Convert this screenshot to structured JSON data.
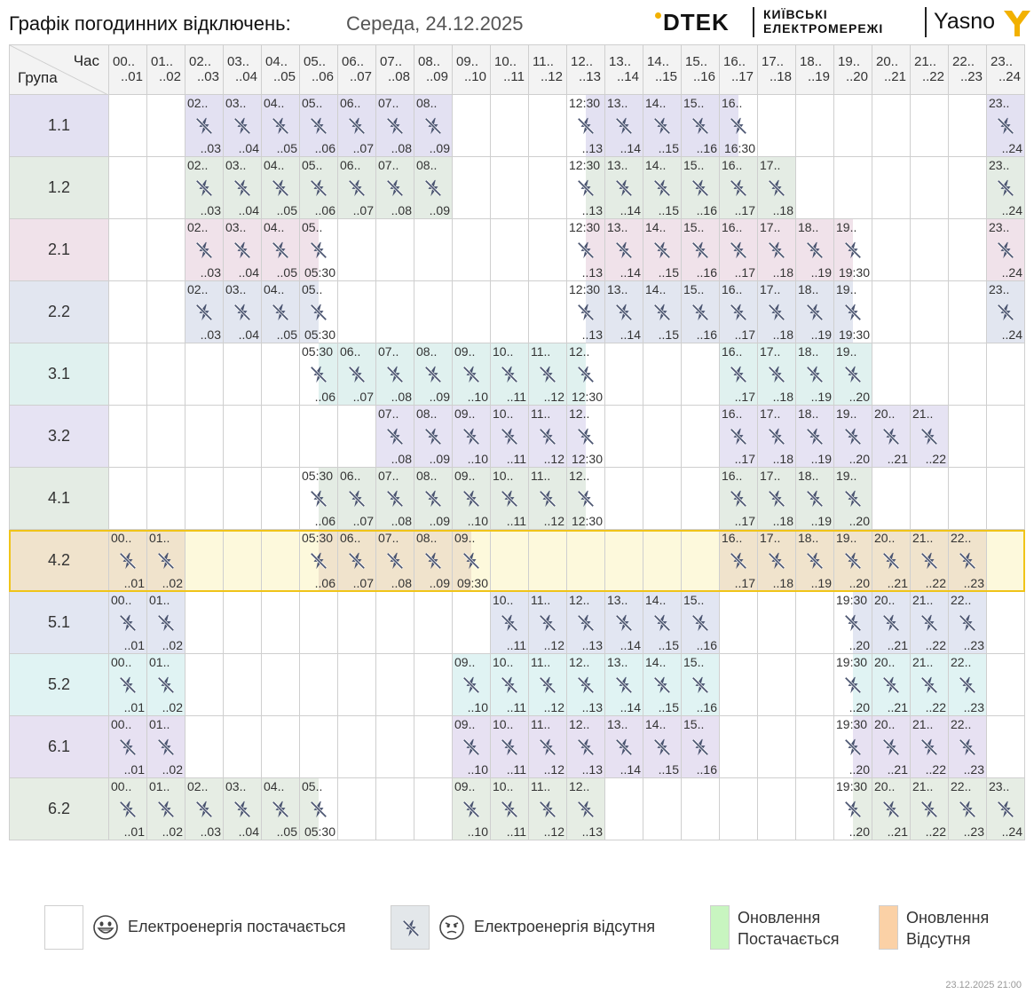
{
  "header": {
    "title": "Графік погодинних відключень:",
    "date": "Середа, 24.12.2025",
    "logo_dtek": "DTEK",
    "logo_kyiv_line1": "КИЇВСЬКІ",
    "logo_kyiv_line2": "ЕЛЕКТРОМЕРЕЖІ",
    "logo_yasno": "Yasno"
  },
  "table": {
    "corner_hour": "Час",
    "corner_group": "Група",
    "hours": [
      {
        "s": "00..",
        "e": "..01"
      },
      {
        "s": "01..",
        "e": "..02"
      },
      {
        "s": "02..",
        "e": "..03"
      },
      {
        "s": "03..",
        "e": "..04"
      },
      {
        "s": "04..",
        "e": "..05"
      },
      {
        "s": "05..",
        "e": "..06"
      },
      {
        "s": "06..",
        "e": "..07"
      },
      {
        "s": "07..",
        "e": "..08"
      },
      {
        "s": "08..",
        "e": "..09"
      },
      {
        "s": "09..",
        "e": "..10"
      },
      {
        "s": "10..",
        "e": "..11"
      },
      {
        "s": "11..",
        "e": "..12"
      },
      {
        "s": "12..",
        "e": "..13"
      },
      {
        "s": "13..",
        "e": "..14"
      },
      {
        "s": "14..",
        "e": "..15"
      },
      {
        "s": "15..",
        "e": "..16"
      },
      {
        "s": "16..",
        "e": "..17"
      },
      {
        "s": "17..",
        "e": "..18"
      },
      {
        "s": "18..",
        "e": "..19"
      },
      {
        "s": "19..",
        "e": "..20"
      },
      {
        "s": "20..",
        "e": "..21"
      },
      {
        "s": "21..",
        "e": "..22"
      },
      {
        "s": "22..",
        "e": "..23"
      },
      {
        "s": "23..",
        "e": "..24"
      }
    ],
    "groups": [
      {
        "label": "1.1",
        "color": "#e3e1f2",
        "cells": "00000000000000000000000000000000000000000000000000000000000000000000000000000000000000000000000000000000000000000000000000000000000000000000"
      },
      {
        "label": "1.2",
        "color": "#e4ece4"
      },
      {
        "label": "2.1",
        "color": "#f0e2ea"
      },
      {
        "label": "2.2",
        "color": "#e2e6f0"
      },
      {
        "label": "3.1",
        "color": "#e0f1ef"
      },
      {
        "label": "3.2",
        "color": "#e6e3f3"
      },
      {
        "label": "4.1",
        "color": "#e4ece4"
      },
      {
        "label": "4.2",
        "color": "#f0e3cc",
        "selected": true
      },
      {
        "label": "5.1",
        "color": "#e2e6f2"
      },
      {
        "label": "5.2",
        "color": "#e0f3f3"
      },
      {
        "label": "6.1",
        "color": "#e7e1f2"
      },
      {
        "label": "6.2",
        "color": "#e6ede4"
      }
    ],
    "outages": [
      [
        [
          2,
          "full"
        ],
        [
          3,
          "full"
        ],
        [
          4,
          "full"
        ],
        [
          5,
          "full"
        ],
        [
          6,
          "full"
        ],
        [
          7,
          "full"
        ],
        [
          8,
          "full"
        ],
        [
          12,
          "second"
        ],
        [
          13,
          "full"
        ],
        [
          14,
          "full"
        ],
        [
          15,
          "full"
        ],
        [
          16,
          "first"
        ],
        [
          23,
          "full"
        ]
      ],
      [
        [
          2,
          "full"
        ],
        [
          3,
          "full"
        ],
        [
          4,
          "full"
        ],
        [
          5,
          "full"
        ],
        [
          6,
          "full"
        ],
        [
          7,
          "full"
        ],
        [
          8,
          "full"
        ],
        [
          12,
          "second"
        ],
        [
          13,
          "full"
        ],
        [
          14,
          "full"
        ],
        [
          15,
          "full"
        ],
        [
          16,
          "full"
        ],
        [
          17,
          "full"
        ],
        [
          23,
          "full"
        ]
      ],
      [
        [
          2,
          "full"
        ],
        [
          3,
          "full"
        ],
        [
          4,
          "full"
        ],
        [
          5,
          "first"
        ],
        [
          12,
          "second"
        ],
        [
          13,
          "full"
        ],
        [
          14,
          "full"
        ],
        [
          15,
          "full"
        ],
        [
          16,
          "full"
        ],
        [
          17,
          "full"
        ],
        [
          18,
          "full"
        ],
        [
          19,
          "first"
        ],
        [
          23,
          "full"
        ]
      ],
      [
        [
          2,
          "full"
        ],
        [
          3,
          "full"
        ],
        [
          4,
          "full"
        ],
        [
          5,
          "first"
        ],
        [
          12,
          "second"
        ],
        [
          13,
          "full"
        ],
        [
          14,
          "full"
        ],
        [
          15,
          "full"
        ],
        [
          16,
          "full"
        ],
        [
          17,
          "full"
        ],
        [
          18,
          "full"
        ],
        [
          19,
          "first"
        ],
        [
          23,
          "full"
        ]
      ],
      [
        [
          5,
          "second"
        ],
        [
          6,
          "full"
        ],
        [
          7,
          "full"
        ],
        [
          8,
          "full"
        ],
        [
          9,
          "full"
        ],
        [
          10,
          "full"
        ],
        [
          11,
          "full"
        ],
        [
          12,
          "first"
        ],
        [
          16,
          "full"
        ],
        [
          17,
          "full"
        ],
        [
          18,
          "full"
        ],
        [
          19,
          "full"
        ]
      ],
      [
        [
          7,
          "full"
        ],
        [
          8,
          "full"
        ],
        [
          9,
          "full"
        ],
        [
          10,
          "full"
        ],
        [
          11,
          "full"
        ],
        [
          12,
          "first"
        ],
        [
          16,
          "full"
        ],
        [
          17,
          "full"
        ],
        [
          18,
          "full"
        ],
        [
          19,
          "full"
        ],
        [
          20,
          "full"
        ],
        [
          21,
          "full"
        ]
      ],
      [
        [
          5,
          "second"
        ],
        [
          6,
          "full"
        ],
        [
          7,
          "full"
        ],
        [
          8,
          "full"
        ],
        [
          9,
          "full"
        ],
        [
          10,
          "full"
        ],
        [
          11,
          "full"
        ],
        [
          12,
          "first"
        ],
        [
          16,
          "full"
        ],
        [
          17,
          "full"
        ],
        [
          18,
          "full"
        ],
        [
          19,
          "full"
        ]
      ],
      [
        [
          0,
          "full"
        ],
        [
          1,
          "full"
        ],
        [
          5,
          "second"
        ],
        [
          6,
          "full"
        ],
        [
          7,
          "full"
        ],
        [
          8,
          "full"
        ],
        [
          9,
          "first"
        ],
        [
          16,
          "full"
        ],
        [
          17,
          "full"
        ],
        [
          18,
          "full"
        ],
        [
          19,
          "full"
        ],
        [
          20,
          "full"
        ],
        [
          21,
          "full"
        ],
        [
          22,
          "full"
        ]
      ],
      [
        [
          0,
          "full"
        ],
        [
          1,
          "full"
        ],
        [
          10,
          "full"
        ],
        [
          11,
          "full"
        ],
        [
          12,
          "full"
        ],
        [
          13,
          "full"
        ],
        [
          14,
          "full"
        ],
        [
          15,
          "full"
        ],
        [
          19,
          "second"
        ],
        [
          20,
          "full"
        ],
        [
          21,
          "full"
        ],
        [
          22,
          "full"
        ]
      ],
      [
        [
          0,
          "full"
        ],
        [
          1,
          "full"
        ],
        [
          9,
          "full"
        ],
        [
          10,
          "full"
        ],
        [
          11,
          "full"
        ],
        [
          12,
          "full"
        ],
        [
          13,
          "full"
        ],
        [
          14,
          "full"
        ],
        [
          15,
          "full"
        ],
        [
          19,
          "second"
        ],
        [
          20,
          "full"
        ],
        [
          21,
          "full"
        ],
        [
          22,
          "full"
        ]
      ],
      [
        [
          0,
          "full"
        ],
        [
          1,
          "full"
        ],
        [
          9,
          "full"
        ],
        [
          10,
          "full"
        ],
        [
          11,
          "full"
        ],
        [
          12,
          "full"
        ],
        [
          13,
          "full"
        ],
        [
          14,
          "full"
        ],
        [
          15,
          "full"
        ],
        [
          19,
          "second"
        ],
        [
          20,
          "full"
        ],
        [
          21,
          "full"
        ],
        [
          22,
          "full"
        ]
      ],
      [
        [
          0,
          "full"
        ],
        [
          1,
          "full"
        ],
        [
          2,
          "full"
        ],
        [
          3,
          "full"
        ],
        [
          4,
          "full"
        ],
        [
          5,
          "first"
        ],
        [
          9,
          "full"
        ],
        [
          10,
          "full"
        ],
        [
          11,
          "full"
        ],
        [
          12,
          "full"
        ],
        [
          19,
          "second"
        ],
        [
          20,
          "full"
        ],
        [
          21,
          "full"
        ],
        [
          22,
          "full"
        ],
        [
          23,
          "full"
        ]
      ]
    ],
    "selected_row_color": "#fdf9dc",
    "half_hour_labels": {
      "second_start": ":30",
      "first_end": ":30"
    }
  },
  "legend": {
    "on_label": "Електроенергія постачається",
    "off_label": "Електроенергія відсутня",
    "upd_on_line1": "Оновлення",
    "upd_on_line2": "Постачається",
    "upd_off_line1": "Оновлення",
    "upd_off_line2": "Відсутня",
    "upd_on_color": "#c8f5c0",
    "upd_off_color": "#fbd1a6",
    "off_box_color": "#e3e7ea"
  },
  "footer": {
    "timestamp": "23.12.2025   21:00"
  }
}
